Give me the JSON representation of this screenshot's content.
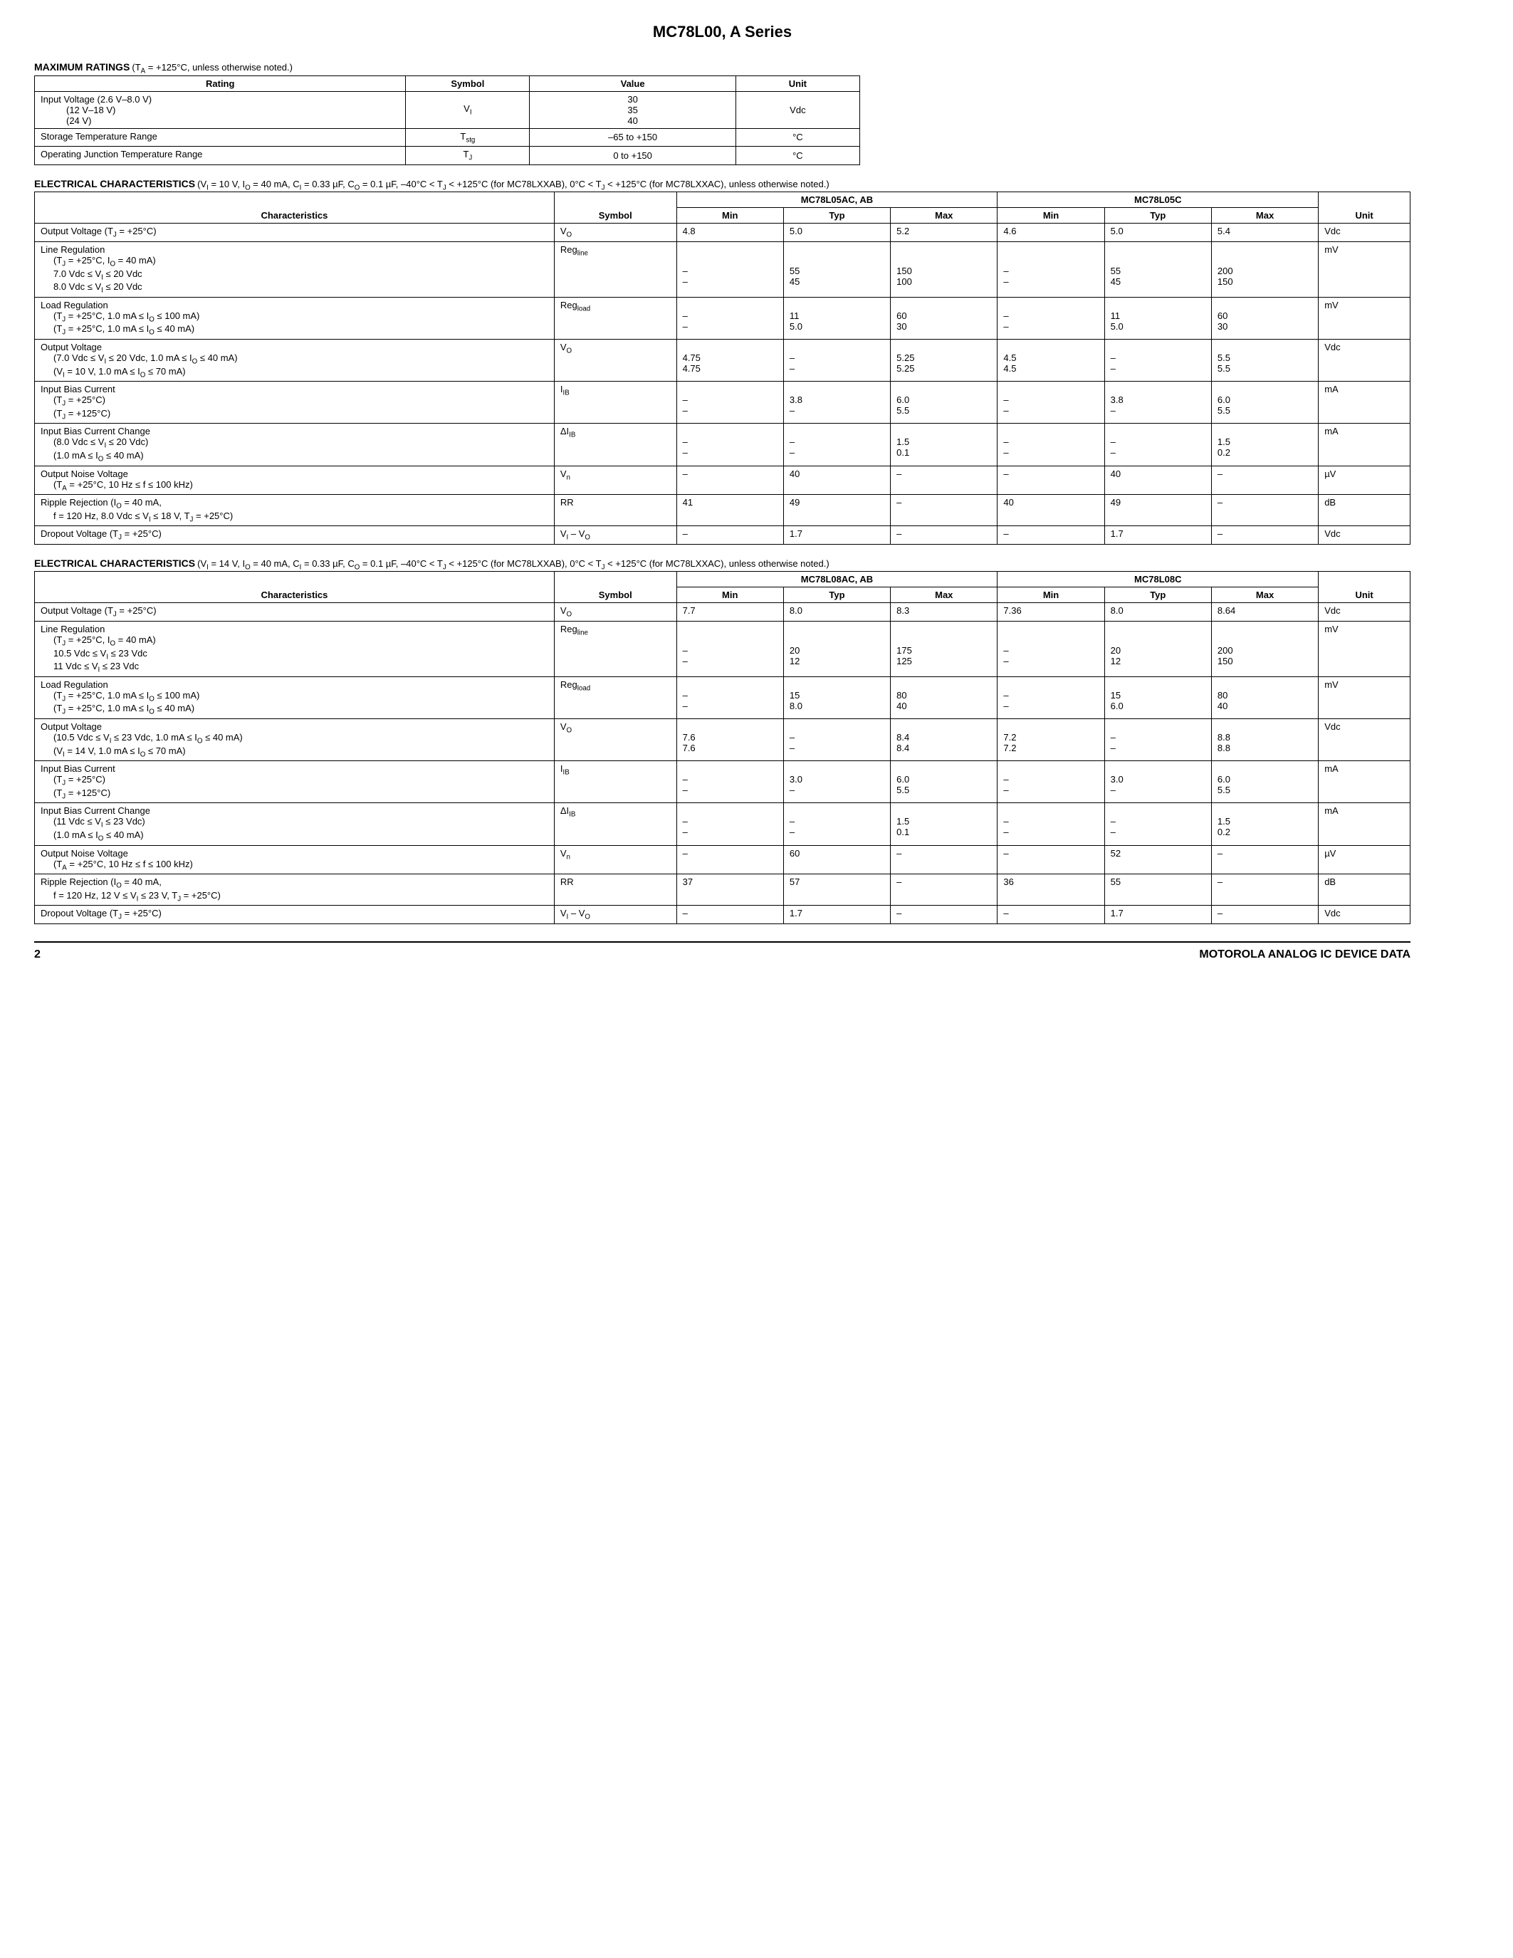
{
  "pageTitle": "MC78L00, A Series",
  "maxRatings": {
    "title": "MAXIMUM RATINGS",
    "cond": "(T_A = +125°C, unless otherwise noted.)",
    "headers": [
      "Rating",
      "Symbol",
      "Value",
      "Unit"
    ],
    "rows": [
      {
        "rating": [
          "Input Voltage (2.6 V–8.0 V)",
          "(12 V–18 V)",
          "(24 V)"
        ],
        "symbol": "V_I",
        "value": [
          "30",
          "35",
          "40"
        ],
        "unit": "Vdc"
      },
      {
        "rating": [
          "Storage Temperature Range"
        ],
        "symbol": "T_stg",
        "value": [
          "–65 to +150"
        ],
        "unit": "°C"
      },
      {
        "rating": [
          "Operating Junction Temperature Range"
        ],
        "symbol": "T_J",
        "value": [
          "0 to +150"
        ],
        "unit": "°C"
      }
    ]
  },
  "elec1": {
    "title": "ELECTRICAL CHARACTERISTICS",
    "cond": "(V_I = 10 V, I_O = 40 mA, C_I = 0.33 µF, C_O = 0.1 µF, –40°C < T_J < +125°C (for MC78LXXAB), 0°C < T_J < +125°C (for MC78LXXAC), unless otherwise noted.)",
    "groupA": "MC78L05AC, AB",
    "groupB": "MC78L05C",
    "headers": [
      "Characteristics",
      "Symbol",
      "Min",
      "Typ",
      "Max",
      "Min",
      "Typ",
      "Max",
      "Unit"
    ],
    "rows": [
      {
        "char": [
          "Output Voltage (T_J = +25°C)"
        ],
        "sym": "V_O",
        "a": [
          [
            "4.8",
            "5.0",
            "5.2"
          ]
        ],
        "b": [
          [
            "4.6",
            "5.0",
            "5.4"
          ]
        ],
        "unit": "Vdc"
      },
      {
        "char": [
          "Line Regulation",
          "  (T_J = +25°C, I_O = 40 mA)",
          "  7.0 Vdc ≤ V_I ≤ 20 Vdc",
          "  8.0 Vdc ≤ V_I ≤ 20 Vdc"
        ],
        "sym": "Reg_line",
        "a": [
          [
            "",
            "",
            ""
          ],
          [
            "",
            "",
            ""
          ],
          [
            "–",
            "55",
            "150"
          ],
          [
            "–",
            "45",
            "100"
          ]
        ],
        "b": [
          [
            "",
            "",
            ""
          ],
          [
            "",
            "",
            ""
          ],
          [
            "–",
            "55",
            "200"
          ],
          [
            "–",
            "45",
            "150"
          ]
        ],
        "unit": "mV"
      },
      {
        "char": [
          "Load Regulation",
          "  (T_J = +25°C, 1.0 mA ≤ I_O ≤ 100 mA)",
          "  (T_J = +25°C, 1.0 mA ≤ I_O ≤ 40 mA)"
        ],
        "sym": "Reg_load",
        "a": [
          [
            "",
            "",
            ""
          ],
          [
            "–",
            "11",
            "60"
          ],
          [
            "–",
            "5.0",
            "30"
          ]
        ],
        "b": [
          [
            "",
            "",
            ""
          ],
          [
            "–",
            "11",
            "60"
          ],
          [
            "–",
            "5.0",
            "30"
          ]
        ],
        "unit": "mV"
      },
      {
        "char": [
          "Output Voltage",
          "  (7.0 Vdc ≤ V_I ≤ 20 Vdc, 1.0 mA ≤ I_O ≤ 40 mA)",
          "  (V_I = 10 V, 1.0 mA ≤ I_O ≤ 70 mA)"
        ],
        "sym": "V_O",
        "a": [
          [
            "",
            "",
            ""
          ],
          [
            "4.75",
            "–",
            "5.25"
          ],
          [
            "4.75",
            "–",
            "5.25"
          ]
        ],
        "b": [
          [
            "",
            "",
            ""
          ],
          [
            "4.5",
            "–",
            "5.5"
          ],
          [
            "4.5",
            "–",
            "5.5"
          ]
        ],
        "unit": "Vdc"
      },
      {
        "char": [
          "Input Bias Current",
          "  (T_J = +25°C)",
          "  (T_J = +125°C)"
        ],
        "sym": "I_IB",
        "a": [
          [
            "",
            "",
            ""
          ],
          [
            "–",
            "3.8",
            "6.0"
          ],
          [
            "–",
            "–",
            "5.5"
          ]
        ],
        "b": [
          [
            "",
            "",
            ""
          ],
          [
            "–",
            "3.8",
            "6.0"
          ],
          [
            "–",
            "–",
            "5.5"
          ]
        ],
        "unit": "mA"
      },
      {
        "char": [
          "Input Bias Current Change",
          "  (8.0 Vdc ≤ V_I ≤ 20 Vdc)",
          "  (1.0 mA ≤ I_O ≤ 40 mA)"
        ],
        "sym": "ΔI_IB",
        "a": [
          [
            "",
            "",
            ""
          ],
          [
            "–",
            "–",
            "1.5"
          ],
          [
            "–",
            "–",
            "0.1"
          ]
        ],
        "b": [
          [
            "",
            "",
            ""
          ],
          [
            "–",
            "–",
            "1.5"
          ],
          [
            "–",
            "–",
            "0.2"
          ]
        ],
        "unit": "mA"
      },
      {
        "char": [
          "Output Noise Voltage",
          "  (T_A = +25°C, 10 Hz ≤ f ≤  100 kHz)"
        ],
        "sym": "V_n",
        "a": [
          [
            "–",
            "40",
            "–"
          ],
          [
            "",
            "",
            ""
          ]
        ],
        "b": [
          [
            "–",
            "40",
            "–"
          ],
          [
            "",
            "",
            ""
          ]
        ],
        "unit": "µV"
      },
      {
        "char": [
          "Ripple Rejection (I_O = 40 mA,",
          "  f = 120 Hz, 8.0 Vdc ≤ V_I ≤ 18 V, T_J = +25°C)"
        ],
        "sym": "RR",
        "a": [
          [
            "41",
            "49",
            "–"
          ],
          [
            "",
            "",
            ""
          ]
        ],
        "b": [
          [
            "40",
            "49",
            "–"
          ],
          [
            "",
            "",
            ""
          ]
        ],
        "unit": "dB"
      },
      {
        "char": [
          "Dropout Voltage (T_J = +25°C)"
        ],
        "sym": "V_I – V_O",
        "a": [
          [
            "–",
            "1.7",
            "–"
          ]
        ],
        "b": [
          [
            "–",
            "1.7",
            "–"
          ]
        ],
        "unit": "Vdc"
      }
    ]
  },
  "elec2": {
    "title": "ELECTRICAL CHARACTERISTICS",
    "cond": "(V_I = 14 V, I_O = 40 mA, C_I = 0.33 µF, C_O = 0.1 µF, –40°C < T_J < +125°C (for MC78LXXAB), 0°C < T_J < +125°C (for MC78LXXAC), unless otherwise noted.)",
    "groupA": "MC78L08AC, AB",
    "groupB": "MC78L08C",
    "headers": [
      "Characteristics",
      "Symbol",
      "Min",
      "Typ",
      "Max",
      "Min",
      "Typ",
      "Max",
      "Unit"
    ],
    "rows": [
      {
        "char": [
          "Output Voltage (T_J = +25°C)"
        ],
        "sym": "V_O",
        "a": [
          [
            "7.7",
            "8.0",
            "8.3"
          ]
        ],
        "b": [
          [
            "7.36",
            "8.0",
            "8.64"
          ]
        ],
        "unit": "Vdc"
      },
      {
        "char": [
          "Line Regulation",
          "  (T_J = +25°C, I_O = 40 mA)",
          "  10.5 Vdc ≤ V_I ≤ 23 Vdc",
          "  11 Vdc ≤ V_I ≤ 23 Vdc"
        ],
        "sym": "Reg_line",
        "a": [
          [
            "",
            "",
            ""
          ],
          [
            "",
            "",
            ""
          ],
          [
            "–",
            "20",
            "175"
          ],
          [
            "–",
            "12",
            "125"
          ]
        ],
        "b": [
          [
            "",
            "",
            ""
          ],
          [
            "",
            "",
            ""
          ],
          [
            "–",
            "20",
            "200"
          ],
          [
            "–",
            "12",
            "150"
          ]
        ],
        "unit": "mV"
      },
      {
        "char": [
          "Load Regulation",
          "  (T_J = +25°C, 1.0 mA ≤ I_O ≤ 100 mA)",
          "  (T_J = +25°C, 1.0 mA ≤ I_O ≤ 40 mA)"
        ],
        "sym": "Reg_load",
        "a": [
          [
            "",
            "",
            ""
          ],
          [
            "–",
            "15",
            "80"
          ],
          [
            "–",
            "8.0",
            "40"
          ]
        ],
        "b": [
          [
            "",
            "",
            ""
          ],
          [
            "–",
            "15",
            "80"
          ],
          [
            "–",
            "6.0",
            "40"
          ]
        ],
        "unit": "mV"
      },
      {
        "char": [
          "Output Voltage",
          "  (10.5 Vdc ≤ V_I ≤ 23 Vdc, 1.0 mA ≤ I_O ≤ 40 mA)",
          "  (V_I = 14 V, 1.0 mA ≤ I_O ≤ 70 mA)"
        ],
        "sym": "V_O",
        "a": [
          [
            "",
            "",
            ""
          ],
          [
            "7.6",
            "–",
            "8.4"
          ],
          [
            "7.6",
            "–",
            "8.4"
          ]
        ],
        "b": [
          [
            "",
            "",
            ""
          ],
          [
            "7.2",
            "–",
            "8.8"
          ],
          [
            "7.2",
            "–",
            "8.8"
          ]
        ],
        "unit": "Vdc"
      },
      {
        "char": [
          "Input Bias Current",
          "  (T_J = +25°C)",
          "  (T_J = +125°C)"
        ],
        "sym": "I_IB",
        "a": [
          [
            "",
            "",
            ""
          ],
          [
            "–",
            "3.0",
            "6.0"
          ],
          [
            "–",
            "–",
            "5.5"
          ]
        ],
        "b": [
          [
            "",
            "",
            ""
          ],
          [
            "–",
            "3.0",
            "6.0"
          ],
          [
            "–",
            "–",
            "5.5"
          ]
        ],
        "unit": "mA"
      },
      {
        "char": [
          "Input Bias Current Change",
          "  (11 Vdc ≤ V_I ≤ 23 Vdc)",
          "  (1.0 mA ≤ I_O ≤ 40 mA)"
        ],
        "sym": "ΔI_IB",
        "a": [
          [
            "",
            "",
            ""
          ],
          [
            "–",
            "–",
            "1.5"
          ],
          [
            "–",
            "–",
            "0.1"
          ]
        ],
        "b": [
          [
            "",
            "",
            ""
          ],
          [
            "–",
            "–",
            "1.5"
          ],
          [
            "–",
            "–",
            "0.2"
          ]
        ],
        "unit": "mA"
      },
      {
        "char": [
          "Output Noise Voltage",
          "  (T_A = +25°C, 10 Hz ≤ f ≤  100 kHz)"
        ],
        "sym": "V_n",
        "a": [
          [
            "–",
            "60",
            "–"
          ],
          [
            "",
            "",
            ""
          ]
        ],
        "b": [
          [
            "–",
            "52",
            "–"
          ],
          [
            "",
            "",
            ""
          ]
        ],
        "unit": "µV"
      },
      {
        "char": [
          "Ripple Rejection (I_O = 40 mA,",
          "  f = 120 Hz, 12 V ≤ V_I ≤ 23 V, T_J = +25°C)"
        ],
        "sym": "RR",
        "a": [
          [
            "37",
            "57",
            "–"
          ],
          [
            "",
            "",
            ""
          ]
        ],
        "b": [
          [
            "36",
            "55",
            "–"
          ],
          [
            "",
            "",
            ""
          ]
        ],
        "unit": "dB"
      },
      {
        "char": [
          "Dropout Voltage (T_J = +25°C)"
        ],
        "sym": "V_I – V_O",
        "a": [
          [
            "–",
            "1.7",
            "–"
          ]
        ],
        "b": [
          [
            "–",
            "1.7",
            "–"
          ]
        ],
        "unit": "Vdc"
      }
    ]
  },
  "footer": {
    "pageNum": "2",
    "text": "MOTOROLA ANALOG IC DEVICE DATA"
  }
}
